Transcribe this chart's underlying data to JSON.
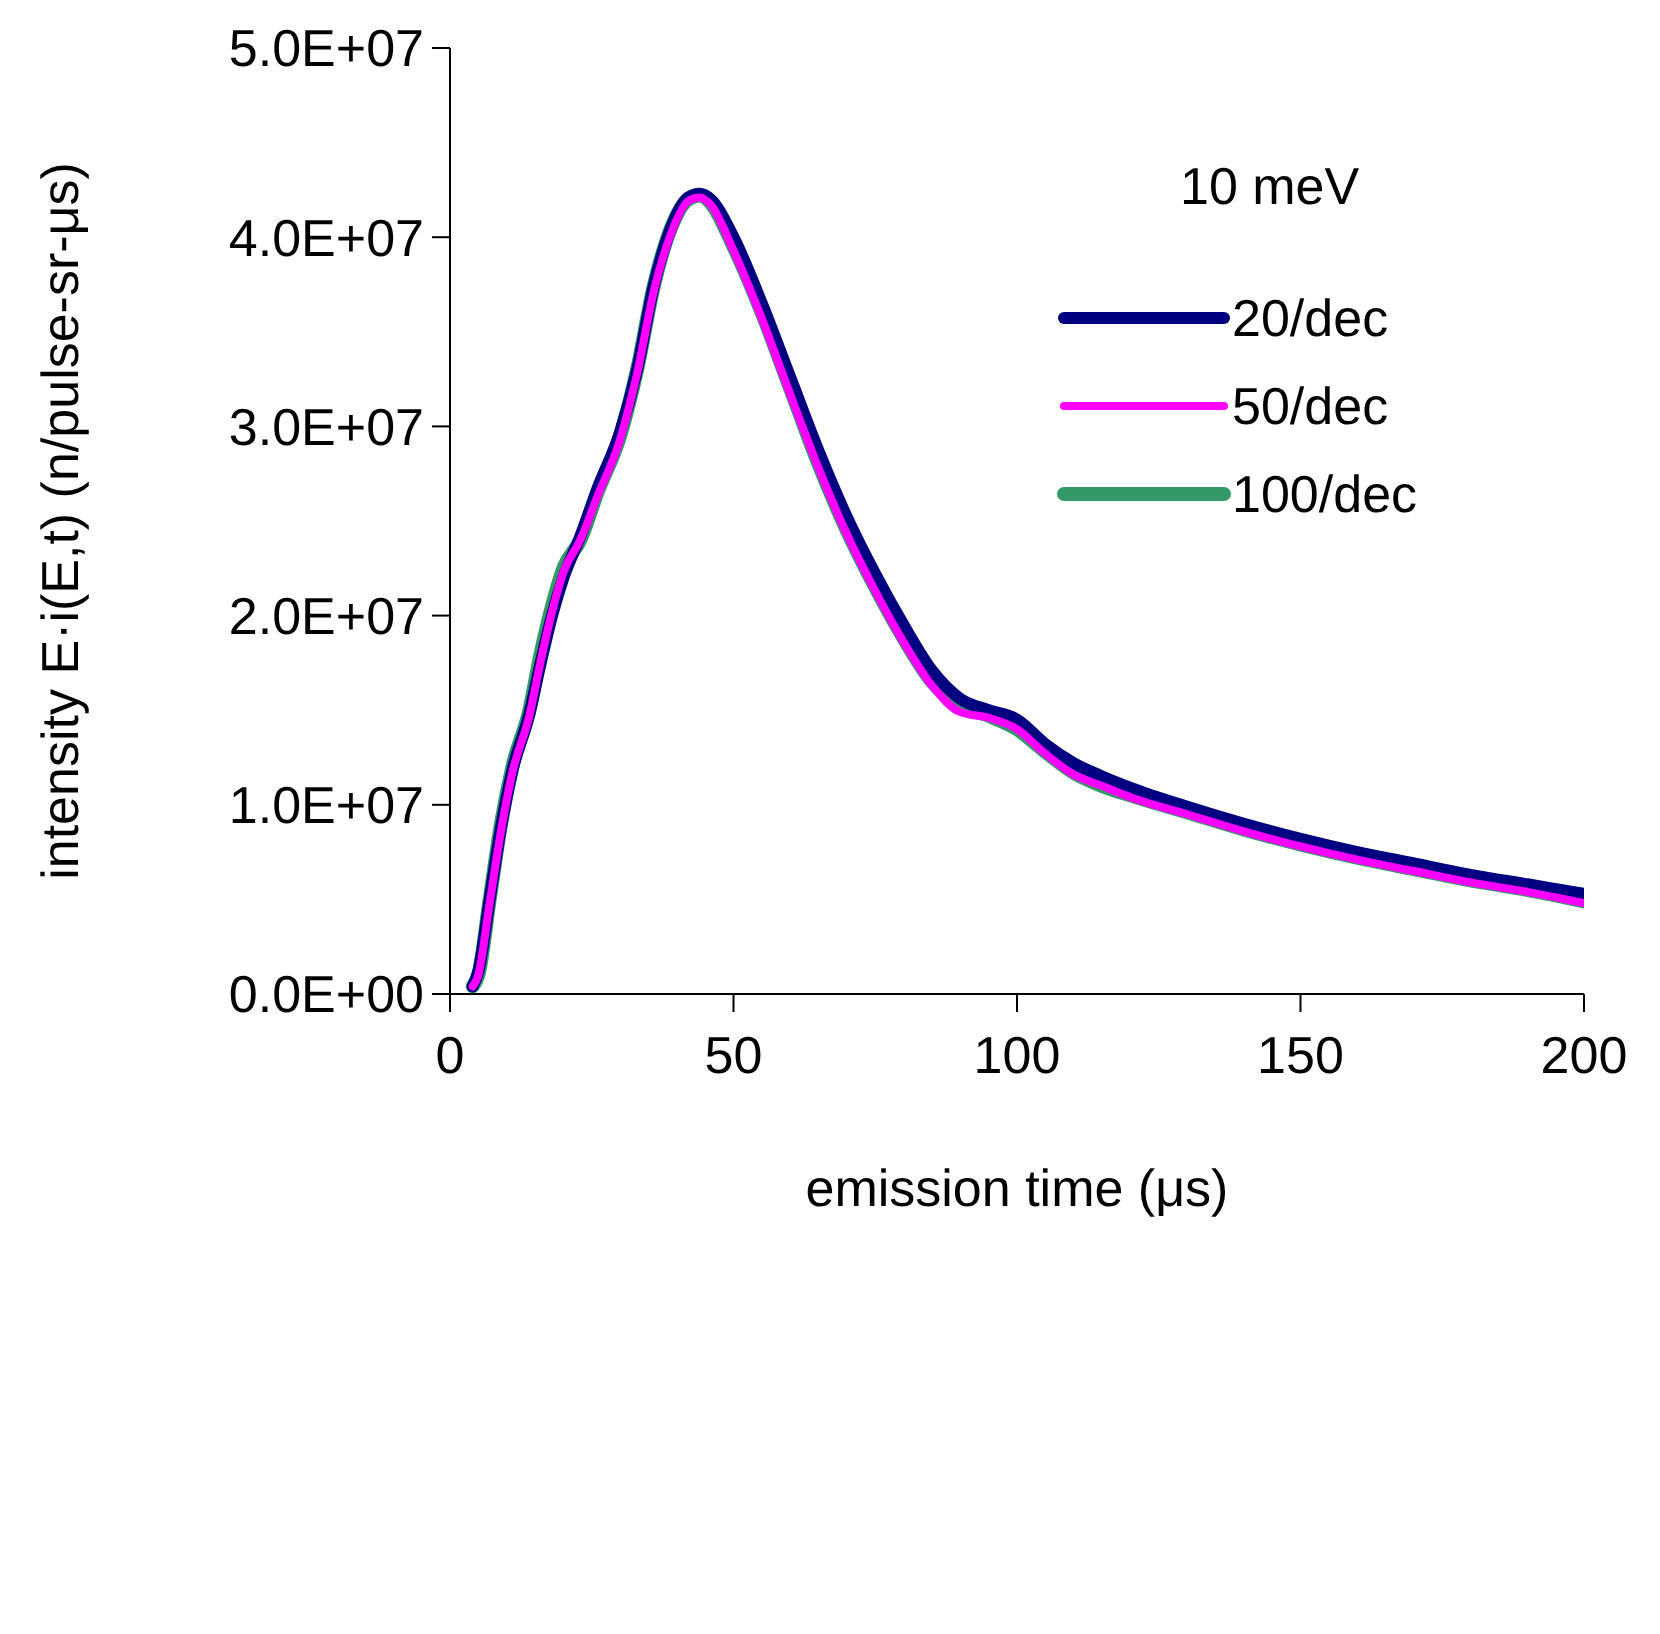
{
  "chart_data": {
    "type": "line",
    "xlabel": "emission time (μs)",
    "ylabel": "intensity E·i(E,t)  (n/pulse-sr-μs)",
    "legend_title": "10 meV",
    "legend": "top right",
    "marker": "none",
    "line_style": "solid",
    "x": [
      4,
      5,
      7,
      9,
      11,
      14,
      16,
      18,
      20,
      23,
      26,
      30,
      33,
      36,
      39,
      42,
      44,
      46,
      50,
      55,
      60,
      65,
      70,
      75,
      80,
      85,
      90,
      95,
      100,
      105,
      110,
      115,
      120,
      130,
      140,
      150,
      160,
      170,
      180,
      190,
      200
    ],
    "xlim": [
      0,
      200
    ],
    "xticks": [
      0,
      50,
      100,
      150,
      200
    ],
    "ylim": [
      0,
      50000000
    ],
    "yticks": [
      {
        "value": 0,
        "label": "0.0E+00"
      },
      {
        "value": 10000000,
        "label": "1.0E+07"
      },
      {
        "value": 20000000,
        "label": "2.0E+07"
      },
      {
        "value": 30000000,
        "label": "3.0E+07"
      },
      {
        "value": 40000000,
        "label": "4.0E+07"
      },
      {
        "value": 50000000,
        "label": "5.0E+07"
      }
    ],
    "series": [
      {
        "name": "20/dec",
        "color": "#000080",
        "values": [
          400000,
          1200000,
          5000000,
          8800000,
          11800000,
          14800000,
          17500000,
          20000000,
          22000000,
          24200000,
          26700000,
          29700000,
          33000000,
          37500000,
          40500000,
          42100000,
          42300000,
          42000000,
          40000000,
          36500000,
          32600000,
          28700000,
          25200000,
          22200000,
          19500000,
          17100000,
          15600000,
          15000000,
          14500000,
          13200000,
          12200000,
          11500000,
          10900000,
          9900000,
          9000000,
          8200000,
          7500000,
          6900000,
          6300000,
          5800000,
          5300000
        ]
      },
      {
        "name": "50/dec",
        "color": "#ff00ff",
        "values": [
          400000,
          1000000,
          4800000,
          8600000,
          11700000,
          14700000,
          17600000,
          20200000,
          22300000,
          24000000,
          26300000,
          29300000,
          32800000,
          37200000,
          40200000,
          41900000,
          42100000,
          41700000,
          39300000,
          35700000,
          31700000,
          27800000,
          24300000,
          21300000,
          18600000,
          16300000,
          14900000,
          14600000,
          14000000,
          12700000,
          11600000,
          11000000,
          10400000,
          9500000,
          8600000,
          7800000,
          7100000,
          6500000,
          5900000,
          5400000,
          4800000
        ]
      },
      {
        "name": "100/dec",
        "color": "#339966",
        "values": [
          400000,
          1000000,
          5000000,
          9000000,
          12000000,
          15000000,
          18000000,
          20500000,
          22500000,
          24000000,
          26500000,
          29500000,
          33000000,
          37500000,
          40500000,
          42000000,
          42200000,
          41800000,
          39500000,
          36000000,
          32000000,
          28000000,
          24500000,
          21500000,
          18800000,
          16500000,
          15200000,
          14700000,
          14000000,
          12800000,
          11700000,
          11000000,
          10500000,
          9600000,
          8700000,
          7900000,
          7200000,
          6600000,
          6000000,
          5500000,
          4900000
        ]
      }
    ]
  }
}
